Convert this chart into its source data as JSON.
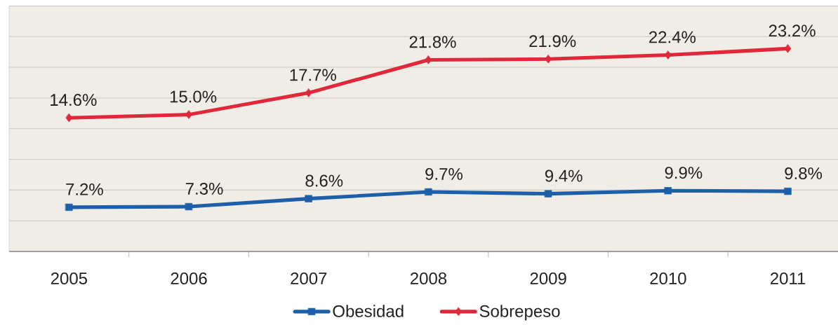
{
  "chart_data": {
    "type": "line",
    "categories": [
      "2005",
      "2006",
      "2007",
      "2008",
      "2009",
      "2010",
      "2011"
    ],
    "ylim": [
      0,
      40
    ],
    "yticks": [
      {
        "value": 0,
        "label": null
      },
      {
        "value": 5,
        "label": null
      },
      {
        "value": 10,
        "label": null
      },
      {
        "value": 15,
        "label": null
      },
      {
        "value": 20,
        "label": null
      },
      {
        "value": 25,
        "label": null
      },
      {
        "value": 30,
        "label": null
      },
      {
        "value": 35,
        "label": null
      },
      {
        "value": 40,
        "label": null
      }
    ],
    "y2lim": [
      -2,
      28.5
    ],
    "tick_labels": "x",
    "grid": "y",
    "legend": "bottom",
    "line_style": "solid",
    "series": [
      {
        "name": "Obesidad",
        "color": "#1d5fa8",
        "marker": "square",
        "values": [
          7.2,
          7.3,
          8.6,
          9.7,
          9.4,
          9.9,
          9.8
        ],
        "value_labels": [
          "7.2%",
          "7.3%",
          "8.6%",
          "9.7%",
          "9.4%",
          "9.9%",
          "9.8%"
        ]
      },
      {
        "name": "Sobrepeso",
        "color": "#e0283a",
        "marker": "diamond",
        "axis": "y2",
        "values": [
          14.6,
          15.0,
          17.7,
          21.8,
          21.9,
          22.4,
          23.2
        ],
        "value_labels": [
          "14.6%",
          "15.0%",
          "17.7%",
          "21.8%",
          "21.9%",
          "22.4%",
          "23.2%"
        ]
      }
    ]
  }
}
